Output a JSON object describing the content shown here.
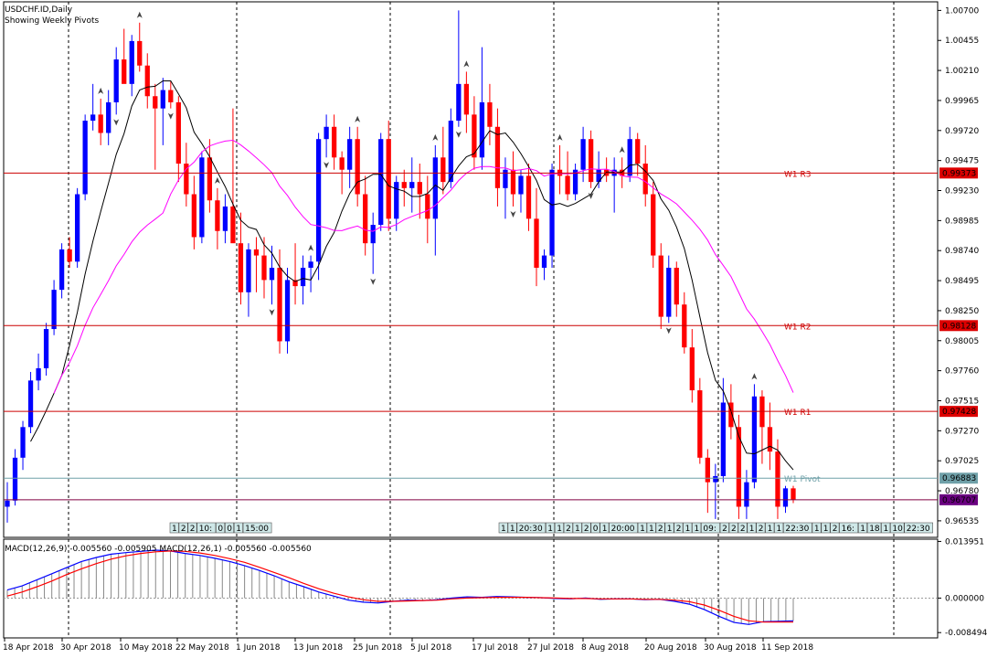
{
  "chart_data": [
    {
      "type": "candlestick",
      "title": "USDCHF.ID,Daily",
      "subtitle": "Showing Weekly Pivots",
      "ylim": [
        0.964,
        1.0077
      ],
      "y_ticks": [
        1.007,
        1.00455,
        1.0021,
        0.99965,
        0.9972,
        0.99475,
        0.9923,
        0.98985,
        0.9874,
        0.98495,
        0.9825,
        0.98005,
        0.9776,
        0.97515,
        0.9727,
        0.97025,
        0.9678,
        0.96535
      ],
      "y_tick_labels": [
        "1.00700",
        "1.00455",
        "1.00210",
        "0.99965",
        "0.99720",
        "0.99475",
        "0.99230",
        "0.98985",
        "0.98740",
        "0.98495",
        "0.98250",
        "0.98005",
        "0.97760",
        "0.97515",
        "0.97270",
        "0.97025",
        "0.96780",
        "0.96535"
      ],
      "x_tick_labels": [
        "18 Apr 2018",
        "30 Apr 2018",
        "10 May 2018",
        "22 May 2018",
        "1 Jun 2018",
        "13 Jun 2018",
        "25 Jun 2018",
        "5 Jul 2018",
        "17 Jul 2018",
        "27 Jul 2018",
        "8 Aug 2018",
        "20 Aug 2018",
        "30 Aug 2018",
        "11 Sep 2018"
      ],
      "series_ohlc": [
        [
          0.9665,
          0.9685,
          0.9652,
          0.967
        ],
        [
          0.967,
          0.9712,
          0.9666,
          0.9705
        ],
        [
          0.9705,
          0.9735,
          0.9695,
          0.973
        ],
        [
          0.973,
          0.9775,
          0.9725,
          0.9768
        ],
        [
          0.9768,
          0.979,
          0.976,
          0.9778
        ],
        [
          0.9778,
          0.9815,
          0.9772,
          0.981
        ],
        [
          0.981,
          0.985,
          0.9805,
          0.9842
        ],
        [
          0.9842,
          0.988,
          0.9835,
          0.9875
        ],
        [
          0.9875,
          0.9885,
          0.986,
          0.9865
        ],
        [
          0.9865,
          0.9925,
          0.986,
          0.992
        ],
        [
          0.992,
          0.9985,
          0.9915,
          0.998
        ],
        [
          0.998,
          1.001,
          0.9972,
          0.9985
        ],
        [
          0.9985,
          0.9998,
          0.996,
          0.997
        ],
        [
          0.997,
          1.0005,
          0.996,
          0.9995
        ],
        [
          0.9995,
          1.004,
          0.9985,
          1.003
        ],
        [
          1.003,
          1.0055,
          1.0015,
          1.001
        ],
        [
          1.001,
          1.005,
          1.0,
          1.0045
        ],
        [
          1.0045,
          1.006,
          1.002,
          1.0025
        ],
        [
          1.0025,
          1.0035,
          0.999,
          1.0
        ],
        [
          1.0,
          1.001,
          0.994,
          0.999
        ],
        [
          0.999,
          1.0015,
          0.996,
          1.0005
        ],
        [
          1.0005,
          1.0012,
          0.999,
          0.9995
        ],
        [
          0.9995,
          1.0,
          0.993,
          0.9945
        ],
        [
          0.9945,
          0.9962,
          0.991,
          0.992
        ],
        [
          0.992,
          0.9935,
          0.9875,
          0.9885
        ],
        [
          0.9885,
          0.9955,
          0.988,
          0.995
        ],
        [
          0.995,
          0.9965,
          0.9905,
          0.9915
        ],
        [
          0.9915,
          0.9925,
          0.9875,
          0.989
        ],
        [
          0.989,
          0.992,
          0.988,
          0.991
        ],
        [
          0.991,
          0.999,
          0.9885,
          0.988
        ],
        [
          0.988,
          0.9905,
          0.983,
          0.984
        ],
        [
          0.984,
          0.988,
          0.982,
          0.9875
        ],
        [
          0.9875,
          0.9885,
          0.984,
          0.987
        ],
        [
          0.987,
          0.9885,
          0.9835,
          0.985
        ],
        [
          0.985,
          0.9878,
          0.983,
          0.986
        ],
        [
          0.986,
          0.9875,
          0.979,
          0.98
        ],
        [
          0.98,
          0.986,
          0.979,
          0.985
        ],
        [
          0.985,
          0.988,
          0.983,
          0.9845
        ],
        [
          0.9845,
          0.987,
          0.983,
          0.986
        ],
        [
          0.986,
          0.987,
          0.984,
          0.9865
        ],
        [
          0.9865,
          0.997,
          0.985,
          0.9965
        ],
        [
          0.9965,
          0.9985,
          0.995,
          0.9975
        ],
        [
          0.9975,
          0.9985,
          0.994,
          0.995
        ],
        [
          0.995,
          0.9955,
          0.992,
          0.994
        ],
        [
          0.994,
          0.9975,
          0.9925,
          0.9965
        ],
        [
          0.9965,
          0.9975,
          0.991,
          0.992
        ],
        [
          0.992,
          0.9935,
          0.987,
          0.988
        ],
        [
          0.988,
          0.9905,
          0.9855,
          0.9895
        ],
        [
          0.9895,
          0.997,
          0.989,
          0.9965
        ],
        [
          0.9965,
          0.998,
          0.989,
          0.99
        ],
        [
          0.99,
          0.9935,
          0.989,
          0.993
        ],
        [
          0.993,
          0.994,
          0.991,
          0.9925
        ],
        [
          0.9925,
          0.995,
          0.9905,
          0.993
        ],
        [
          0.993,
          0.9945,
          0.99,
          0.992
        ],
        [
          0.992,
          0.9935,
          0.988,
          0.99
        ],
        [
          0.99,
          0.996,
          0.987,
          0.995
        ],
        [
          0.995,
          0.9975,
          0.992,
          0.993
        ],
        [
          0.993,
          0.999,
          0.9925,
          0.998
        ],
        [
          0.998,
          1.007,
          0.9975,
          1.001
        ],
        [
          1.001,
          1.002,
          0.997,
          0.9985
        ],
        [
          0.9985,
          1.0,
          0.994,
          0.995
        ],
        [
          0.995,
          1.004,
          0.994,
          0.9995
        ],
        [
          0.9995,
          1.001,
          0.996,
          0.9975
        ],
        [
          0.9975,
          0.999,
          0.991,
          0.9925
        ],
        [
          0.9925,
          0.995,
          0.99,
          0.994
        ],
        [
          0.994,
          0.9955,
          0.991,
          0.992
        ],
        [
          0.992,
          0.994,
          0.9905,
          0.9935
        ],
        [
          0.9935,
          0.9945,
          0.989,
          0.99
        ],
        [
          0.99,
          0.9925,
          0.9845,
          0.986
        ],
        [
          0.986,
          0.9875,
          0.985,
          0.987
        ],
        [
          0.987,
          0.9945,
          0.986,
          0.994
        ],
        [
          0.994,
          0.996,
          0.992,
          0.9935
        ],
        [
          0.9935,
          0.9955,
          0.9915,
          0.992
        ],
        [
          0.992,
          0.9945,
          0.9915,
          0.994
        ],
        [
          0.994,
          0.9975,
          0.993,
          0.9965
        ],
        [
          0.9965,
          0.9972,
          0.9925,
          0.993
        ],
        [
          0.993,
          0.9955,
          0.9925,
          0.994
        ],
        [
          0.994,
          0.995,
          0.993,
          0.9935
        ],
        [
          0.9935,
          0.995,
          0.9905,
          0.994
        ],
        [
          0.994,
          0.995,
          0.9925,
          0.9935
        ],
        [
          0.9935,
          0.9975,
          0.993,
          0.9965
        ],
        [
          0.9965,
          0.997,
          0.9935,
          0.9945
        ],
        [
          0.9945,
          0.996,
          0.991,
          0.992
        ],
        [
          0.992,
          0.993,
          0.986,
          0.987
        ],
        [
          0.987,
          0.988,
          0.981,
          0.982
        ],
        [
          0.982,
          0.987,
          0.9815,
          0.986
        ],
        [
          0.986,
          0.9865,
          0.982,
          0.983
        ],
        [
          0.983,
          0.984,
          0.979,
          0.9795
        ],
        [
          0.9795,
          0.981,
          0.975,
          0.976
        ],
        [
          0.976,
          0.977,
          0.97,
          0.9705
        ],
        [
          0.9705,
          0.9712,
          0.966,
          0.9685
        ],
        [
          0.9685,
          0.97,
          0.9655,
          0.969
        ],
        [
          0.969,
          0.977,
          0.9685,
          0.975
        ],
        [
          0.975,
          0.9765,
          0.972,
          0.973
        ],
        [
          0.973,
          0.974,
          0.9655,
          0.9665
        ],
        [
          0.9665,
          0.9695,
          0.9655,
          0.9685
        ],
        [
          0.9685,
          0.9765,
          0.968,
          0.9755
        ],
        [
          0.9755,
          0.976,
          0.97,
          0.973
        ],
        [
          0.973,
          0.975,
          0.9695,
          0.971
        ],
        [
          0.971,
          0.972,
          0.9655,
          0.9665
        ],
        [
          0.9665,
          0.9682,
          0.966,
          0.968
        ],
        [
          0.968,
          0.9682,
          0.9668,
          0.9671
        ]
      ],
      "ma_short_label": "",
      "ma_long_label": "",
      "pivots": [
        {
          "label": "W1 R3",
          "value": "0.99373",
          "level": 0.99373,
          "color": "#cc0000",
          "tag_color": "#dd0000"
        },
        {
          "label": "W1 R2",
          "value": "0.98128",
          "level": 0.98128,
          "color": "#cc0000",
          "tag_color": "#dd0000"
        },
        {
          "label": "W1 R1",
          "value": "0.97428",
          "level": 0.97428,
          "color": "#cc0000",
          "tag_color": "#dd0000"
        },
        {
          "label": "W1 Pivot",
          "value": "0.96883",
          "level": 0.96883,
          "color": "#6fa0a8",
          "tag_color": "#6fa0a8"
        },
        {
          "label": "",
          "value": "0.96707",
          "level": 0.96707,
          "color": "#800040",
          "tag_color": "#6a0080"
        }
      ],
      "mini_labels_left": [
        "1",
        "2",
        "2",
        "10:",
        "0",
        "0",
        "1",
        "15:00"
      ],
      "mini_labels_right": [
        "1",
        "1",
        "20:30",
        "1",
        "1",
        "2",
        "1",
        "2",
        "0",
        "1",
        "20:00",
        "1",
        "1",
        "2",
        "1",
        "2",
        "1",
        "1",
        "09:",
        "2",
        "2",
        "2",
        "1",
        "2",
        "1",
        "1",
        "22:30",
        "1",
        "1",
        "2",
        "16:",
        "1",
        "18",
        "1",
        "10",
        "22:30"
      ],
      "colors": {
        "bull": "#0000ff",
        "bear": "#ff0000",
        "ma_fast": "#000000",
        "ma_slow": "#ff00ff",
        "grid": "#000000"
      }
    },
    {
      "type": "line",
      "title": "MACD(12,26,9) -0.005560 -0.005905 MACD(12,26,1) -0.005560 -0.005560",
      "ylim": [
        -0.0098,
        0.0145
      ],
      "y_ticks": [
        0.013951,
        0.0,
        -0.008494
      ],
      "y_tick_labels": [
        "0.013951",
        "0.000000",
        "-0.008494"
      ],
      "series": [
        {
          "name": "",
          "color": "#0000ff",
          "values": [
            0.002,
            0.003,
            0.0045,
            0.006,
            0.0075,
            0.009,
            0.01,
            0.0108,
            0.0112,
            0.0115,
            0.0118,
            0.0116,
            0.011,
            0.0105,
            0.0098,
            0.009,
            0.008,
            0.0068,
            0.0055,
            0.004,
            0.0028,
            0.0015,
            0.0005,
            -0.0005,
            -0.001,
            -0.0012,
            -0.0008,
            -0.0005,
            -0.0006,
            -0.0004,
            0.0,
            0.0003,
            0.0002,
            0.0004,
            0.0003,
            0.0002,
            0.0001,
            -0.0001,
            -0.0002,
            0.0,
            -0.0003,
            -0.0002,
            -0.0002,
            -0.0004,
            -0.0003,
            -0.0008,
            -0.0015,
            -0.0028,
            -0.0045,
            -0.006,
            -0.0065,
            -0.0058,
            -0.0057,
            -0.0056
          ]
        },
        {
          "name": "",
          "color": "#ff0000",
          "values": [
            0.0005,
            0.0015,
            0.0028,
            0.0042,
            0.0058,
            0.0072,
            0.0085,
            0.0096,
            0.0104,
            0.011,
            0.0114,
            0.0116,
            0.0115,
            0.0111,
            0.0105,
            0.0097,
            0.0088,
            0.0076,
            0.0063,
            0.005,
            0.0036,
            0.0023,
            0.0012,
            0.0003,
            -0.0004,
            -0.0008,
            -0.0008,
            -0.0007,
            -0.0006,
            -0.0005,
            -0.0002,
            0.0,
            0.0001,
            0.0002,
            0.0002,
            0.0002,
            0.0001,
            0.0,
            -0.0001,
            -0.0001,
            -0.0002,
            -0.0002,
            -0.0002,
            -0.0003,
            -0.0003,
            -0.0005,
            -0.0009,
            -0.0017,
            -0.003,
            -0.0045,
            -0.0056,
            -0.0059,
            -0.0059,
            -0.0059
          ]
        }
      ]
    }
  ]
}
